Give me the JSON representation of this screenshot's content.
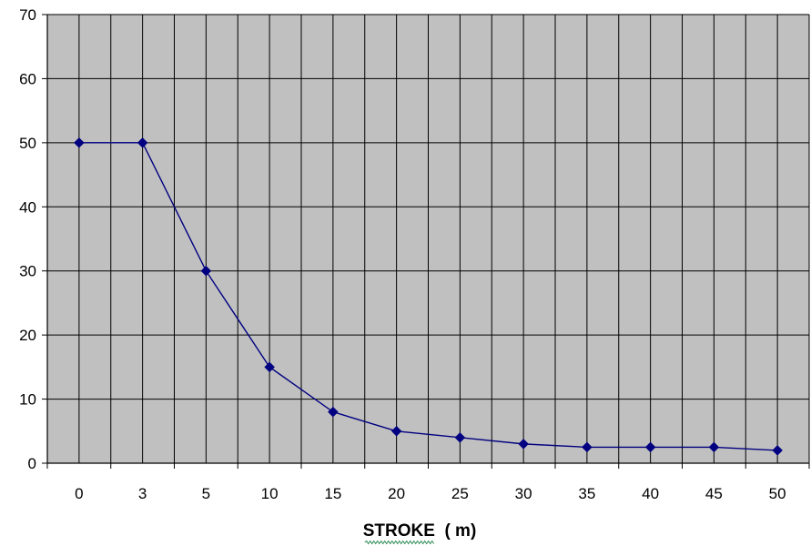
{
  "chart_data": {
    "type": "line",
    "categories": [
      "0",
      "3",
      "5",
      "10",
      "15",
      "20",
      "25",
      "30",
      "35",
      "40",
      "45",
      "50"
    ],
    "series": [
      {
        "values": [
          50,
          50,
          30,
          15,
          8,
          5,
          4,
          3,
          2.5,
          2.5,
          2.5,
          2
        ]
      }
    ],
    "title": "",
    "xlabel": "STROKE  ( m)",
    "ylabel": "",
    "ylim": [
      0,
      70
    ],
    "yticks": [
      "0",
      "10",
      "20",
      "30",
      "40",
      "50",
      "60",
      "70"
    ],
    "grid": true,
    "legend": "none",
    "colors": {
      "plot_background": "#c0c0c0",
      "grid": "#000000",
      "series_line": "#000080",
      "marker": "#000080"
    },
    "marker": "diamond-icon"
  }
}
